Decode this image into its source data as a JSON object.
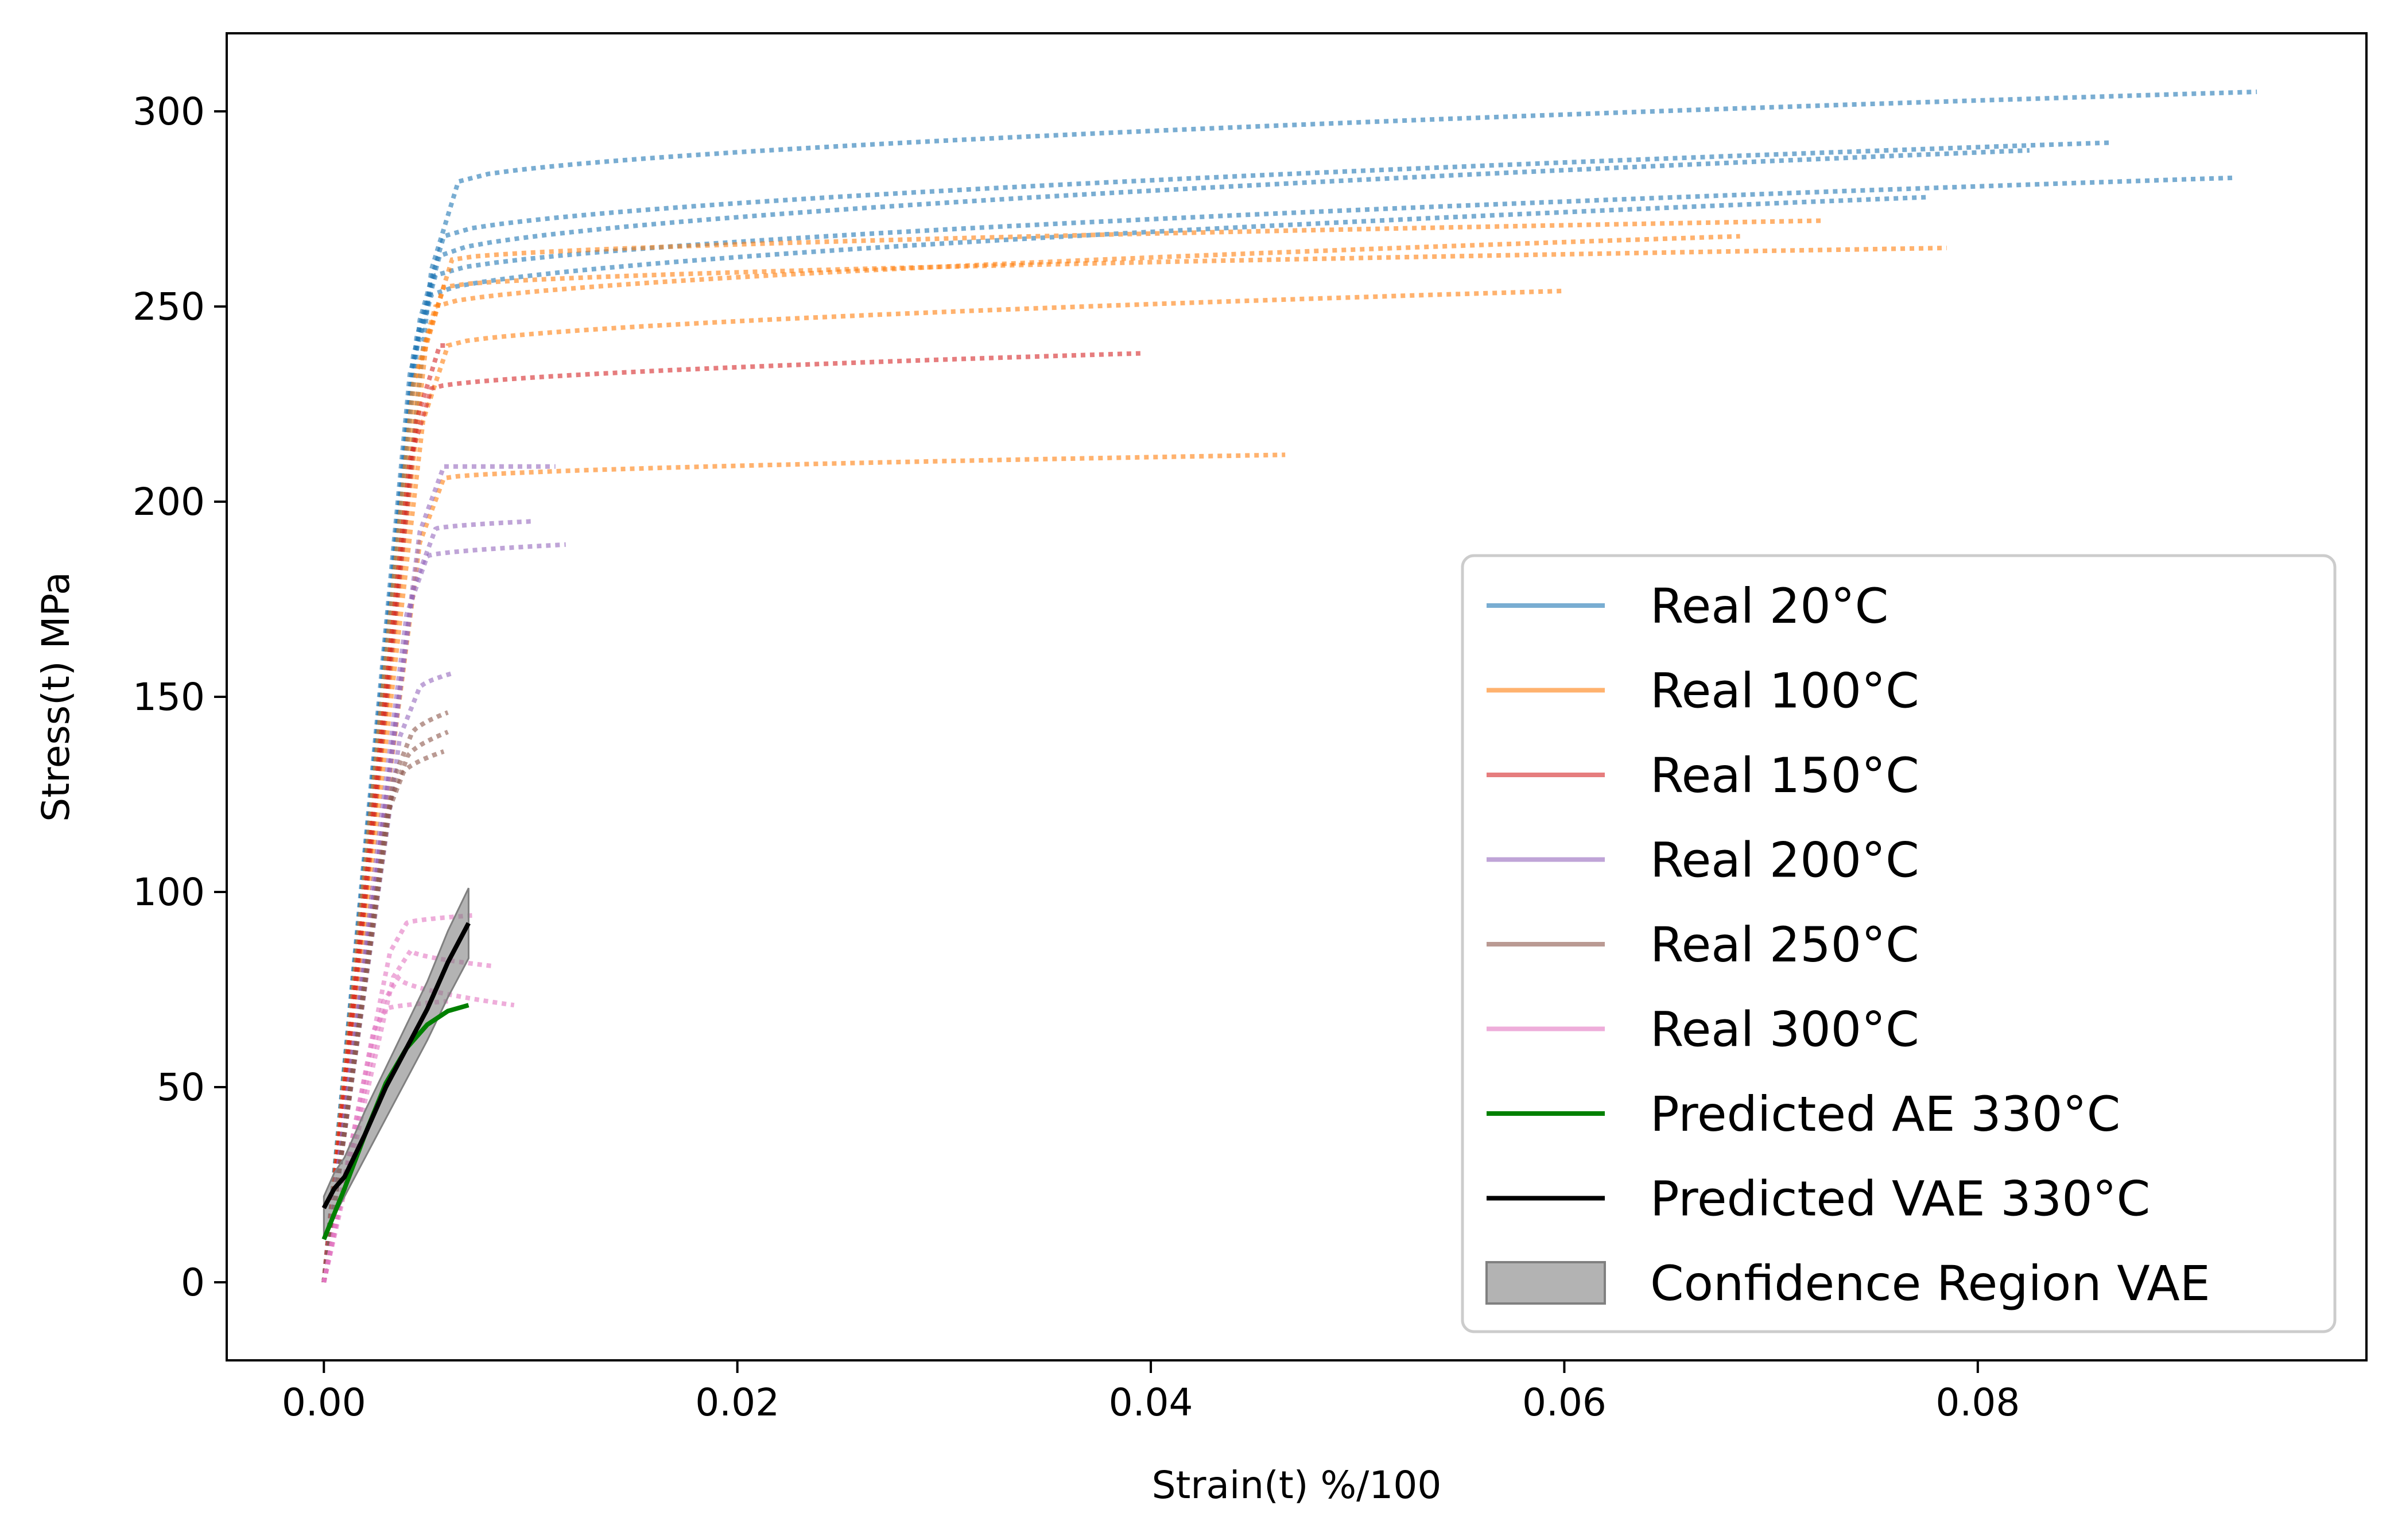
{
  "chart_data": {
    "type": "line",
    "xlabel": "Strain(t) %/100",
    "ylabel": "Stress(t) MPa",
    "xlim": [
      -0.0047,
      0.0988
    ],
    "ylim": [
      -20,
      320
    ],
    "xticks": [
      0.0,
      0.02,
      0.04,
      0.06,
      0.08
    ],
    "xtick_labels": [
      "0.00",
      "0.02",
      "0.04",
      "0.06",
      "0.08"
    ],
    "yticks": [
      0,
      50,
      100,
      150,
      200,
      250,
      300
    ],
    "ytick_labels": [
      "0",
      "50",
      "100",
      "150",
      "200",
      "250",
      "300"
    ],
    "grid": false,
    "legend_position": "lower-right",
    "legend": [
      {
        "label": "Real 20°C",
        "color": "#1f77b4",
        "kind": "line",
        "alpha": 0.6
      },
      {
        "label": "Real 100°C",
        "color": "#ff7f0e",
        "kind": "line",
        "alpha": 0.6
      },
      {
        "label": "Real 150°C",
        "color": "#d62728",
        "kind": "line",
        "alpha": 0.6
      },
      {
        "label": "Real 200°C",
        "color": "#9467bd",
        "kind": "line",
        "alpha": 0.6
      },
      {
        "label": "Real 250°C",
        "color": "#8c564b",
        "kind": "line",
        "alpha": 0.6
      },
      {
        "label": "Real 300°C",
        "color": "#e377c2",
        "kind": "line",
        "alpha": 0.6
      },
      {
        "label": "Predicted AE 330°C",
        "color": "#008000",
        "kind": "line",
        "alpha": 1.0
      },
      {
        "label": "Predicted VAE 330°C",
        "color": "#000000",
        "kind": "line",
        "alpha": 1.0
      },
      {
        "label": "Confidence Region VAE",
        "color": "#808080",
        "kind": "patch",
        "alpha": 0.6
      }
    ],
    "real_series": [
      {
        "group": "Real 20°C",
        "color": "#1f77b4",
        "curves": [
          {
            "yield_x": 0.0065,
            "yield_y": 282,
            "end_x": 0.0935,
            "end_y": 305
          },
          {
            "yield_x": 0.0058,
            "yield_y": 268,
            "end_x": 0.0865,
            "end_y": 292
          },
          {
            "yield_x": 0.0056,
            "yield_y": 263,
            "end_x": 0.0825,
            "end_y": 290
          },
          {
            "yield_x": 0.0054,
            "yield_y": 258,
            "end_x": 0.0925,
            "end_y": 283
          },
          {
            "yield_x": 0.0052,
            "yield_y": 253,
            "end_x": 0.0775,
            "end_y": 278
          }
        ]
      },
      {
        "group": "Real 100°C",
        "color": "#ff7f0e",
        "curves": [
          {
            "yield_x": 0.0062,
            "yield_y": 262,
            "end_x": 0.0725,
            "end_y": 272
          },
          {
            "yield_x": 0.0058,
            "yield_y": 255,
            "end_x": 0.0785,
            "end_y": 265
          },
          {
            "yield_x": 0.0054,
            "yield_y": 250,
            "end_x": 0.0685,
            "end_y": 268
          },
          {
            "yield_x": 0.006,
            "yield_y": 240,
            "end_x": 0.06,
            "end_y": 254
          },
          {
            "yield_x": 0.0058,
            "yield_y": 206,
            "end_x": 0.0465,
            "end_y": 212
          }
        ]
      },
      {
        "group": "Real 150°C",
        "color": "#d62728",
        "curves": [
          {
            "yield_x": 0.0052,
            "yield_y": 229,
            "end_x": 0.0395,
            "end_y": 238
          },
          {
            "yield_x": 0.0056,
            "yield_y": 240,
            "end_x": 0.006,
            "end_y": 240
          }
        ]
      },
      {
        "group": "Real 200°C",
        "color": "#9467bd",
        "curves": [
          {
            "yield_x": 0.0058,
            "yield_y": 209,
            "end_x": 0.0112,
            "end_y": 209
          },
          {
            "yield_x": 0.0054,
            "yield_y": 193,
            "end_x": 0.0102,
            "end_y": 195
          },
          {
            "yield_x": 0.005,
            "yield_y": 186,
            "end_x": 0.0117,
            "end_y": 189
          },
          {
            "yield_x": 0.0046,
            "yield_y": 152,
            "end_x": 0.0062,
            "end_y": 156
          }
        ]
      },
      {
        "group": "Real 250°C",
        "color": "#8c564b",
        "curves": [
          {
            "yield_x": 0.0042,
            "yield_y": 140,
            "end_x": 0.006,
            "end_y": 146
          },
          {
            "yield_x": 0.004,
            "yield_y": 134,
            "end_x": 0.006,
            "end_y": 141
          },
          {
            "yield_x": 0.0038,
            "yield_y": 130,
            "end_x": 0.0058,
            "end_y": 136
          }
        ]
      },
      {
        "group": "Real 300°C",
        "color": "#e377c2",
        "curves": [
          {
            "yield_x": 0.004,
            "yield_y": 92,
            "end_x": 0.0072,
            "end_y": 94
          },
          {
            "yield_x": 0.0042,
            "yield_y": 85,
            "end_x": 0.0082,
            "end_y": 81
          },
          {
            "yield_x": 0.0036,
            "yield_y": 78,
            "end_x": 0.0092,
            "end_y": 71
          },
          {
            "yield_x": 0.003,
            "yield_y": 70,
            "end_x": 0.006,
            "end_y": 72
          }
        ]
      }
    ],
    "predicted_ae": {
      "label": "Predicted AE 330°C",
      "x": [
        0.0,
        0.001,
        0.002,
        0.003,
        0.004,
        0.005,
        0.006,
        0.007
      ],
      "y": [
        11,
        24,
        38,
        51,
        60,
        66,
        69.5,
        71
      ]
    },
    "predicted_vae": {
      "label": "Predicted VAE 330°C",
      "x": [
        0.0,
        0.0005,
        0.001,
        0.002,
        0.003,
        0.004,
        0.005,
        0.006,
        0.007
      ],
      "y": [
        19,
        24,
        27,
        38,
        50,
        60,
        70,
        82,
        92
      ],
      "upper": [
        22,
        28,
        32,
        44,
        55,
        66,
        77,
        90,
        101
      ],
      "lower": [
        12,
        17,
        22,
        32,
        42,
        52,
        62,
        73,
        83
      ]
    }
  }
}
